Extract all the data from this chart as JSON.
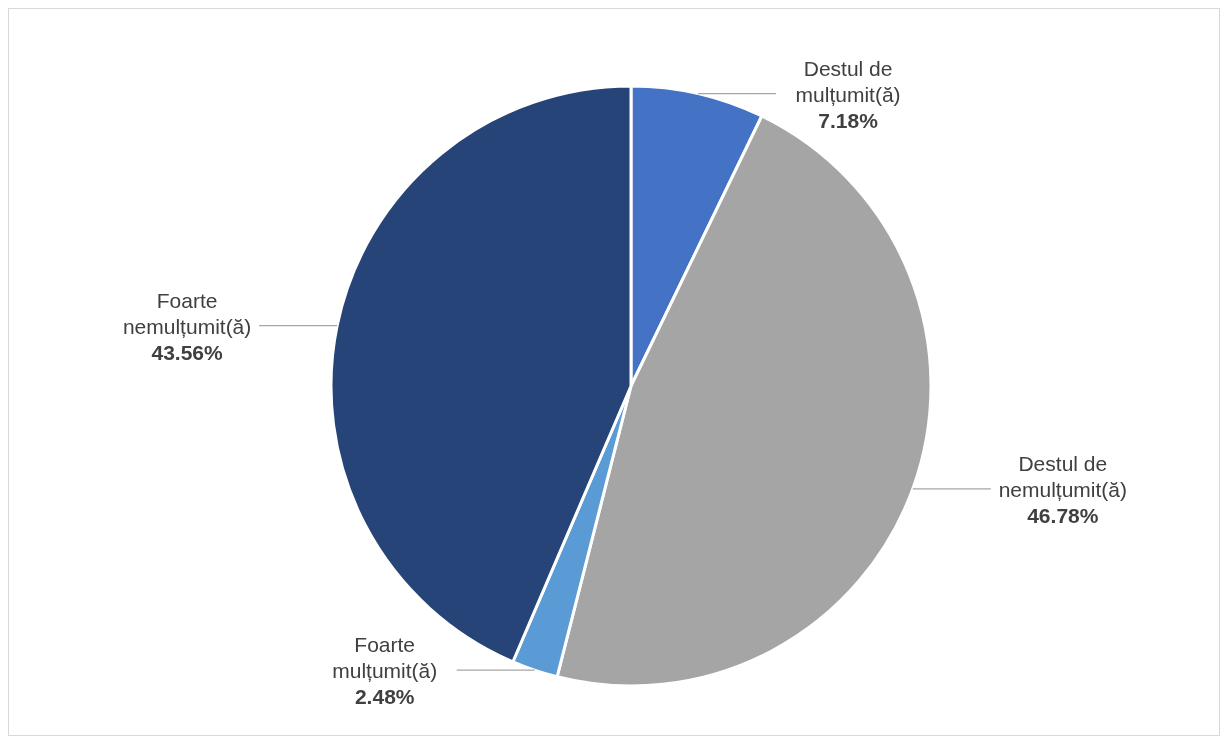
{
  "chart_data": {
    "type": "pie",
    "categories": [
      "Destul de mulțumit(ă)",
      "Destul de nemulțumit(ă)",
      "Foarte mulțumit(ă)",
      "Foarte nemulțumit(ă)"
    ],
    "values": [
      7.18,
      46.78,
      2.48,
      43.56
    ],
    "value_labels": [
      "7.18%",
      "46.78%",
      "2.48%",
      "43.56%"
    ],
    "colors": [
      "#4472c4",
      "#a5a5a5",
      "#5b9bd5",
      "#264478"
    ],
    "legend": false
  }
}
